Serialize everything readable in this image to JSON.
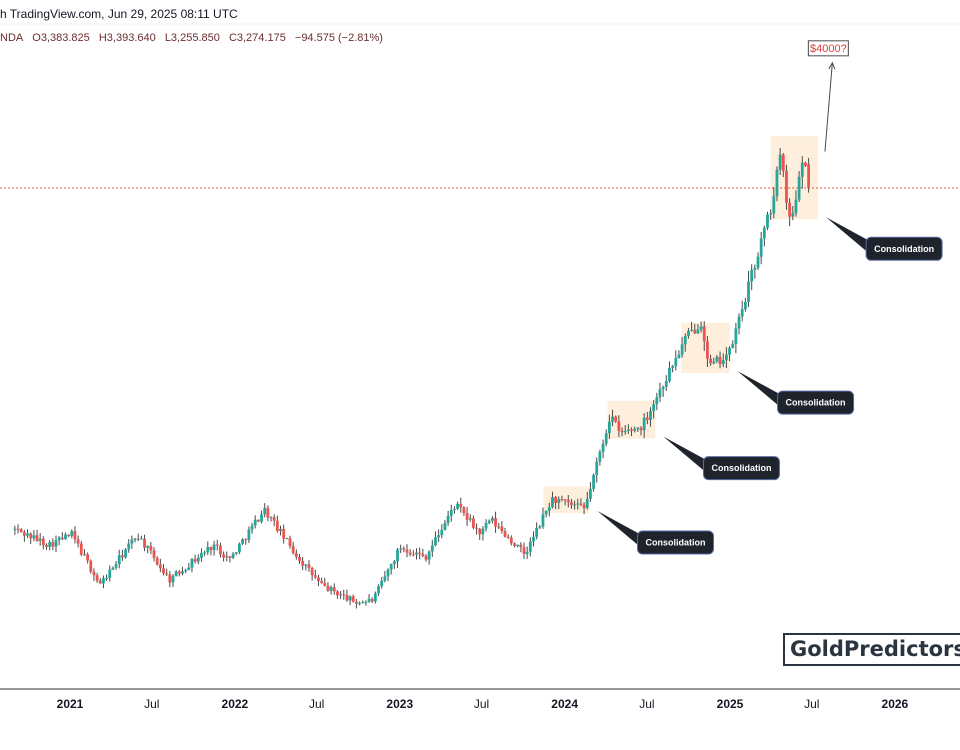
{
  "header": {
    "published_line": "h TradingView.com, Jun 29, 2025 08:11 UTC",
    "symbol_fragment": "NDA",
    "open": "O3,383.825",
    "high": "H3,393.640",
    "low": "L3,255.850",
    "close": "C3,274.175",
    "change": "−94.575 (−2.81%)"
  },
  "watermark": {
    "text": "GoldPredictors.c"
  },
  "chart_data": {
    "type": "candlestick",
    "title": "",
    "xlabel": "",
    "ylabel": "",
    "interval": "weekly",
    "colors": {
      "up": "#26a69a",
      "down": "#ef5350",
      "wick": "#4a4a4a",
      "price_line": "#ef5350",
      "highlight": "#fdefdc",
      "callout": "#1f232b"
    },
    "x_ticks": [
      {
        "label": "2021",
        "bold": true
      },
      {
        "label": "Jul",
        "bold": false
      },
      {
        "label": "2022",
        "bold": true
      },
      {
        "label": "Jul",
        "bold": false
      },
      {
        "label": "2023",
        "bold": true
      },
      {
        "label": "Jul",
        "bold": false
      },
      {
        "label": "2024",
        "bold": true
      },
      {
        "label": "Jul",
        "bold": false
      },
      {
        "label": "2025",
        "bold": true
      },
      {
        "label": "Jul",
        "bold": false
      },
      {
        "label": "2026",
        "bold": true
      }
    ],
    "x_range": [
      "2020-09",
      "2026-04"
    ],
    "y_range": [
      1600,
      4200
    ],
    "last_close": 3274.175,
    "anchors": [
      {
        "date": "2020-09-01",
        "price": 1920
      },
      {
        "date": "2020-11-15",
        "price": 1860
      },
      {
        "date": "2021-01-05",
        "price": 1900
      },
      {
        "date": "2021-03-08",
        "price": 1700
      },
      {
        "date": "2021-05-30",
        "price": 1900
      },
      {
        "date": "2021-08-09",
        "price": 1720
      },
      {
        "date": "2021-11-15",
        "price": 1860
      },
      {
        "date": "2021-12-20",
        "price": 1800
      },
      {
        "date": "2022-03-07",
        "price": 2000
      },
      {
        "date": "2022-05-16",
        "price": 1820
      },
      {
        "date": "2022-07-10",
        "price": 1700
      },
      {
        "date": "2022-09-26",
        "price": 1630
      },
      {
        "date": "2022-11-03",
        "price": 1640
      },
      {
        "date": "2023-01-02",
        "price": 1850
      },
      {
        "date": "2023-02-27",
        "price": 1810
      },
      {
        "date": "2023-05-04",
        "price": 2020
      },
      {
        "date": "2023-06-29",
        "price": 1900
      },
      {
        "date": "2023-07-20",
        "price": 1960
      },
      {
        "date": "2023-10-05",
        "price": 1820
      },
      {
        "date": "2023-12-04",
        "price": 2040
      },
      {
        "date": "2024-02-14",
        "price": 2000
      },
      {
        "date": "2024-04-12",
        "price": 2380
      },
      {
        "date": "2024-05-01",
        "price": 2300
      },
      {
        "date": "2024-06-20",
        "price": 2330
      },
      {
        "date": "2024-09-26",
        "price": 2680
      },
      {
        "date": "2024-10-31",
        "price": 2750
      },
      {
        "date": "2024-11-14",
        "price": 2560
      },
      {
        "date": "2024-12-31",
        "price": 2620
      },
      {
        "date": "2025-04-10",
        "price": 3250
      },
      {
        "date": "2025-04-22",
        "price": 3430
      },
      {
        "date": "2025-05-15",
        "price": 3120
      },
      {
        "date": "2025-06-13",
        "price": 3430
      },
      {
        "date": "2025-06-27",
        "price": 3274
      }
    ],
    "consolidation_zones": [
      {
        "from": "2023-11-15",
        "to": "2024-02-25",
        "low": 1985,
        "high": 2090
      },
      {
        "from": "2024-04-05",
        "to": "2024-07-20",
        "low": 2280,
        "high": 2430
      },
      {
        "from": "2024-09-15",
        "to": "2024-12-31",
        "low": 2540,
        "high": 2740
      },
      {
        "from": "2025-04-01",
        "to": "2025-07-15",
        "low": 3150,
        "high": 3480
      }
    ],
    "annotations": [
      {
        "text": "Consolidation",
        "zone": 0
      },
      {
        "text": "Consolidation",
        "zone": 1
      },
      {
        "text": "Consolidation",
        "zone": 2
      },
      {
        "text": "Consolidation",
        "zone": 3
      }
    ],
    "target": {
      "text": "$4000?",
      "date": "2025-07-20",
      "price": 3850
    }
  }
}
